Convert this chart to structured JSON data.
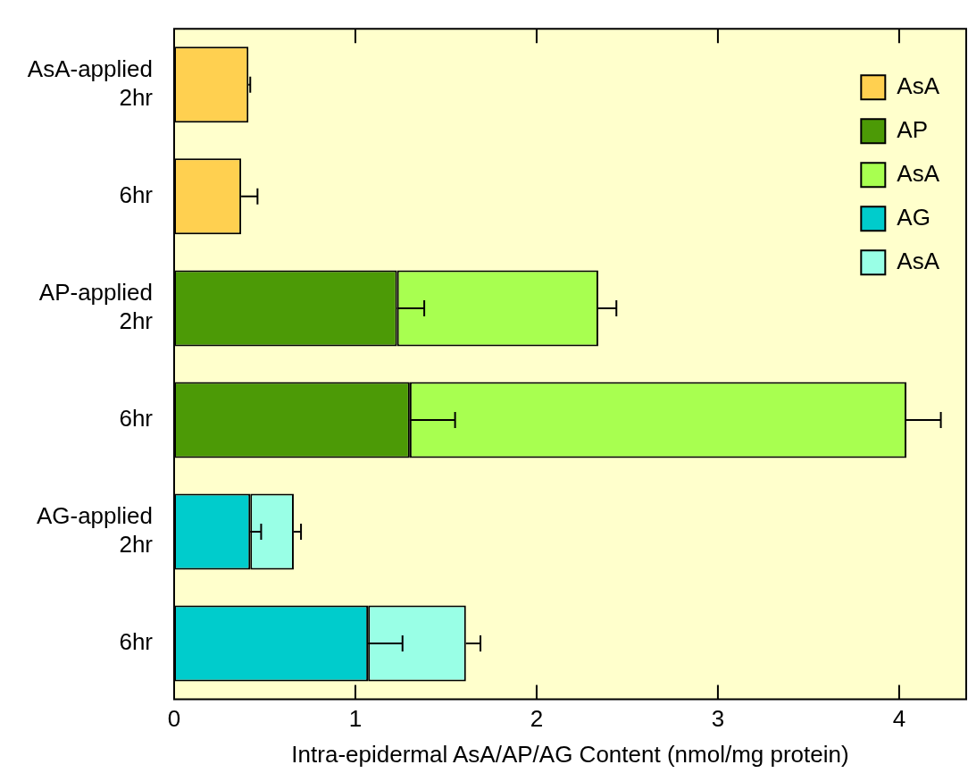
{
  "chart_data": {
    "type": "bar",
    "orientation": "horizontal",
    "stacked": true,
    "xlabel": "Intra-epidermal AsA/AP/AG Content (nmol/mg protein)",
    "categories": [
      "AsA-applied 2hr",
      "6hr",
      "AP-applied 2hr",
      "6hr",
      "AG-applied 2hr",
      "6hr"
    ],
    "series": [
      {
        "name": "AsA",
        "color": "#ffd050",
        "values": [
          0.41,
          0.37,
          null,
          null,
          null,
          null
        ],
        "errors": [
          0.01,
          0.09,
          null,
          null,
          null,
          null
        ]
      },
      {
        "name": "AP",
        "color": "#4c9a06",
        "values": [
          null,
          null,
          1.23,
          1.3,
          null,
          null
        ],
        "errors": [
          null,
          null,
          0.15,
          0.25,
          null,
          null
        ]
      },
      {
        "name": "AsA",
        "color": "#a8ff50",
        "values": [
          null,
          null,
          1.11,
          2.74,
          null,
          null
        ],
        "errors": [
          null,
          null,
          0.1,
          0.19,
          null,
          null
        ]
      },
      {
        "name": "AG",
        "color": "#00cccc",
        "values": [
          null,
          null,
          null,
          null,
          0.42,
          1.07
        ],
        "errors": [
          null,
          null,
          null,
          null,
          0.06,
          0.19
        ]
      },
      {
        "name": "AsA",
        "color": "#99ffe6",
        "values": [
          null,
          null,
          null,
          null,
          0.24,
          0.54
        ],
        "errors": [
          null,
          null,
          null,
          null,
          0.04,
          0.08
        ]
      }
    ],
    "xlim": [
      0,
      4.37
    ],
    "xticks": [
      0,
      1,
      2,
      3,
      4
    ],
    "grid": false,
    "legend": "top right"
  }
}
